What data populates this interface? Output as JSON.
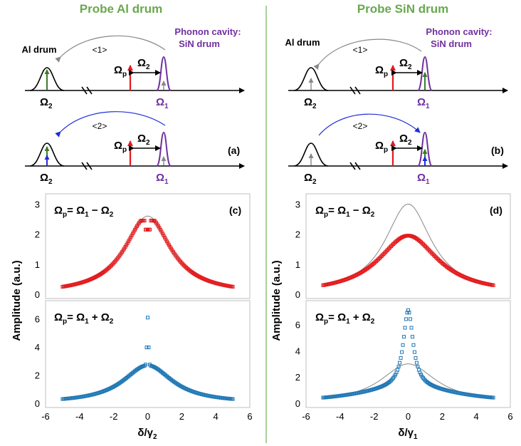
{
  "headings": {
    "left": "Probe Al drum",
    "right": "Probe SiN drum"
  },
  "schematic": {
    "al_drum": "Al drum",
    "cavity_line1": "Phonon cavity:",
    "cavity_line2": "SiN drum",
    "path1": "<1>",
    "path2": "<2>",
    "panel_a": "(a)",
    "panel_b": "(b)",
    "omega": "Ω",
    "sub1": "1",
    "sub2": "2",
    "subp": "p"
  },
  "plots": {
    "panel_c": "(c)",
    "panel_d": "(d)",
    "cond_minus": {
      "lhs": "Ω",
      "lhs_sub": "p",
      "eq": "= Ω",
      "a_sub": "1",
      "op": " − Ω",
      "b_sub": "2"
    },
    "cond_plus": {
      "lhs": "Ω",
      "lhs_sub": "p",
      "eq": "= Ω",
      "a_sub": "1",
      "op": " + Ω",
      "b_sub": "2"
    },
    "ylabel": "Amplitude (a.u.)",
    "xlabel_left": {
      "main": "δ/γ",
      "sub": "2"
    },
    "xlabel_right": {
      "main": "δ/γ",
      "sub": "1"
    },
    "x_ticks": [
      "-6",
      "-4",
      "-2",
      "0",
      "2",
      "4",
      "6"
    ],
    "y_ticks_top": [
      "0",
      "1",
      "2",
      "3"
    ],
    "y_ticks_bottom": [
      "0",
      "2",
      "4",
      "6"
    ]
  },
  "colors": {
    "heading": "#6aa84f",
    "purple": "#7030a0",
    "red": "#e31a1c",
    "blue": "#1f77b4",
    "arrow_blue": "#1f2fd8",
    "green": "#3a7d2c",
    "gray": "#888888"
  },
  "chart_data": [
    {
      "type": "scatter",
      "panel": "(c) top",
      "xlabel": "δ/γ2",
      "ylabel": "Amplitude (a.u.)",
      "xlim": [
        -6,
        6
      ],
      "ylim": [
        0,
        3.2
      ],
      "series": [
        {
          "color": "#e31a1c",
          "x": [
            -5,
            -4,
            -3,
            -2,
            -1,
            -0.5,
            -0.2,
            0,
            0.2,
            0.5,
            1,
            2,
            3,
            4,
            5
          ],
          "y": [
            0.25,
            0.33,
            0.45,
            0.7,
            1.3,
            1.9,
            2.45,
            2.3,
            2.45,
            1.9,
            1.3,
            0.7,
            0.45,
            0.33,
            0.25
          ]
        },
        {
          "color": "#888888",
          "x": [
            -5,
            0,
            5
          ],
          "y": [
            0.25,
            2.6,
            0.25
          ]
        }
      ]
    },
    {
      "type": "scatter",
      "panel": "(c) bottom",
      "xlabel": "δ/γ2",
      "ylabel": "Amplitude (a.u.)",
      "xlim": [
        -6,
        6
      ],
      "ylim": [
        0,
        7
      ],
      "series": [
        {
          "color": "#1f77b4",
          "x": [
            -5,
            -4,
            -3,
            -2,
            -1,
            0,
            1,
            2,
            3,
            4,
            5
          ],
          "y": [
            0.3,
            0.4,
            0.6,
            0.9,
            1.6,
            6.1,
            1.6,
            0.9,
            0.6,
            0.4,
            0.3
          ]
        }
      ]
    },
    {
      "type": "scatter",
      "panel": "(d) top",
      "xlabel": "δ/γ1",
      "ylabel": "Amplitude (a.u.)",
      "xlim": [
        -6,
        6
      ],
      "ylim": [
        0,
        3.2
      ],
      "series": [
        {
          "color": "#e31a1c",
          "x": [
            -5,
            -4,
            -3,
            -2,
            -1,
            0,
            1,
            2,
            3,
            4,
            5
          ],
          "y": [
            0.3,
            0.4,
            0.55,
            0.85,
            1.45,
            1.95,
            1.45,
            0.85,
            0.55,
            0.4,
            0.3
          ]
        },
        {
          "color": "#888888",
          "x": [
            -5,
            0,
            5
          ],
          "y": [
            0.3,
            3.0,
            0.3
          ]
        }
      ]
    },
    {
      "type": "scatter",
      "panel": "(d) bottom",
      "xlabel": "δ/γ1",
      "ylabel": "Amplitude (a.u.)",
      "xlim": [
        -6,
        6
      ],
      "ylim": [
        0,
        7.5
      ],
      "series": [
        {
          "color": "#1f77b4",
          "x": [
            -5,
            -4,
            -3,
            -2,
            -1,
            0,
            1,
            2,
            3,
            4,
            5
          ],
          "y": [
            0.4,
            0.5,
            0.7,
            1.1,
            2.1,
            7.1,
            2.1,
            1.1,
            0.7,
            0.5,
            0.4
          ]
        },
        {
          "color": "#888888",
          "x": [
            -5,
            0,
            5
          ],
          "y": [
            0.4,
            3.0,
            0.4
          ]
        }
      ]
    }
  ]
}
